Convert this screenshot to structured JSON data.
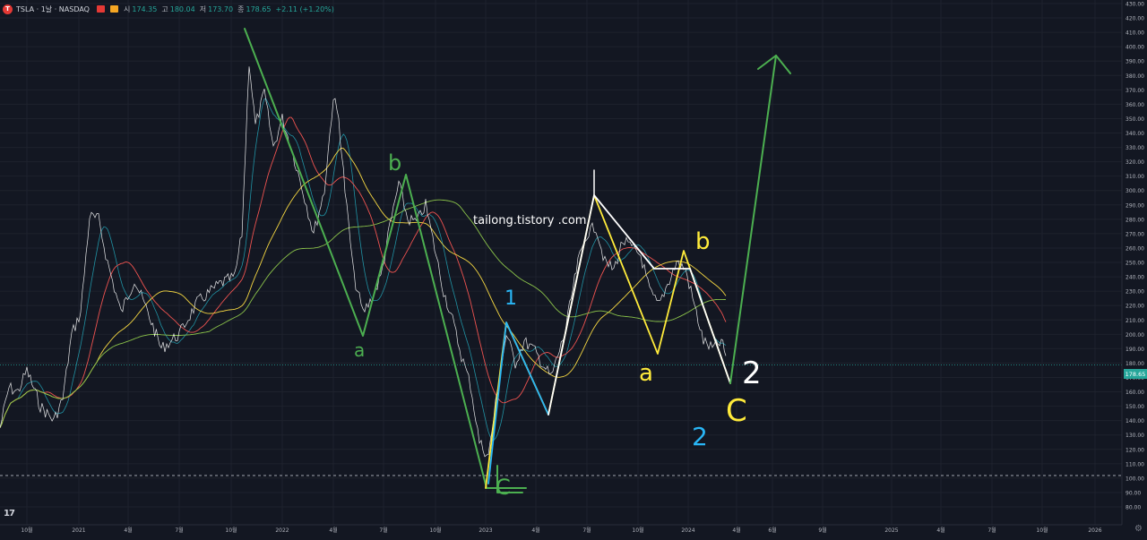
{
  "header": {
    "symbol": "TSLA · 1날 · NASDAQ",
    "open_label": "시",
    "open_value": "174.35",
    "high_label": "고",
    "high_value": "180.04",
    "low_label": "저",
    "low_value": "173.70",
    "close_label": "종",
    "close_value": "178.65",
    "change": "+2.11 (+1.20%)",
    "colors": {
      "up": "#26a69a",
      "logo": "#e53935",
      "background": "#131722"
    }
  },
  "annotations": {
    "watermark": "tailong.tistory .com",
    "green_a": "a",
    "green_b": "b",
    "green_c": "C",
    "blue_1": "1",
    "blue_2": "2",
    "white_2": "2",
    "yellow_a": "a",
    "yellow_b": "b",
    "yellow_c": "C"
  },
  "price_tag": "178.65",
  "chart_data": {
    "type": "line",
    "series": [
      {
        "values": [
          [
            0,
            135
          ],
          [
            10,
            163
          ],
          [
            20,
            160
          ],
          [
            30,
            175
          ],
          [
            45,
            150
          ],
          [
            60,
            140
          ],
          [
            70,
            155
          ],
          [
            80,
            200
          ],
          [
            90,
            215
          ],
          [
            100,
            282
          ],
          [
            110,
            280
          ],
          [
            120,
            250
          ],
          [
            135,
            215
          ],
          [
            150,
            238
          ],
          [
            165,
            215
          ],
          [
            180,
            190
          ],
          [
            200,
            200
          ],
          [
            220,
            222
          ],
          [
            245,
            235
          ],
          [
            262,
            240
          ],
          [
            270,
            270
          ],
          [
            278,
            390
          ],
          [
            285,
            345
          ],
          [
            295,
            368
          ],
          [
            305,
            330
          ],
          [
            315,
            350
          ],
          [
            325,
            330
          ],
          [
            338,
            300
          ],
          [
            350,
            270
          ],
          [
            362,
            300
          ],
          [
            372,
            365
          ],
          [
            378,
            350
          ],
          [
            385,
            300
          ],
          [
            395,
            240
          ],
          [
            405,
            215
          ],
          [
            415,
            225
          ],
          [
            425,
            240
          ],
          [
            435,
            275
          ],
          [
            445,
            305
          ],
          [
            455,
            280
          ],
          [
            465,
            278
          ],
          [
            475,
            290
          ],
          [
            485,
            260
          ],
          [
            495,
            230
          ],
          [
            505,
            210
          ],
          [
            515,
            185
          ],
          [
            525,
            165
          ],
          [
            535,
            125
          ],
          [
            545,
            115
          ],
          [
            555,
            160
          ],
          [
            565,
            200
          ],
          [
            575,
            180
          ],
          [
            585,
            195
          ],
          [
            595,
            190
          ],
          [
            605,
            180
          ],
          [
            615,
            170
          ],
          [
            630,
            200
          ],
          [
            645,
            250
          ],
          [
            655,
            270
          ],
          [
            665,
            275
          ],
          [
            675,
            250
          ],
          [
            685,
            245
          ],
          [
            695,
            265
          ],
          [
            705,
            260
          ],
          [
            715,
            255
          ],
          [
            725,
            230
          ],
          [
            735,
            220
          ],
          [
            745,
            235
          ],
          [
            755,
            250
          ],
          [
            765,
            245
          ],
          [
            775,
            220
          ],
          [
            785,
            195
          ],
          [
            795,
            190
          ],
          [
            805,
            195
          ],
          [
            810,
            185
          ]
        ]
      }
    ],
    "y_ticks": [
      "430.00",
      "420.00",
      "410.00",
      "400.00",
      "390.00",
      "380.00",
      "370.00",
      "360.00",
      "350.00",
      "340.00",
      "330.00",
      "320.00",
      "310.00",
      "300.00",
      "290.00",
      "280.00",
      "270.00",
      "260.00",
      "250.00",
      "240.00",
      "230.00",
      "220.00",
      "210.00",
      "200.00",
      "190.00",
      "180.00",
      "170.00",
      "160.00",
      "150.00",
      "140.00",
      "130.00",
      "120.00",
      "110.00",
      "100.00",
      "90.00",
      "80.00"
    ],
    "x_ticks": [
      "10월",
      "2021",
      "4월",
      "7월",
      "10월",
      "2022",
      "4월",
      "7월",
      "10월",
      "2023",
      "4월",
      "7월",
      "10월",
      "2024",
      "4월",
      "6월",
      "9월",
      "2025",
      "4월",
      "7월",
      "10월",
      "2026"
    ],
    "ylim": [
      77,
      432
    ],
    "colors": {
      "price": "#ffffff",
      "ma_red": "#ef5350",
      "ma_yellow": "#f5d742",
      "ma_green": "#8bc34a",
      "cyan": "#26c6da"
    }
  }
}
